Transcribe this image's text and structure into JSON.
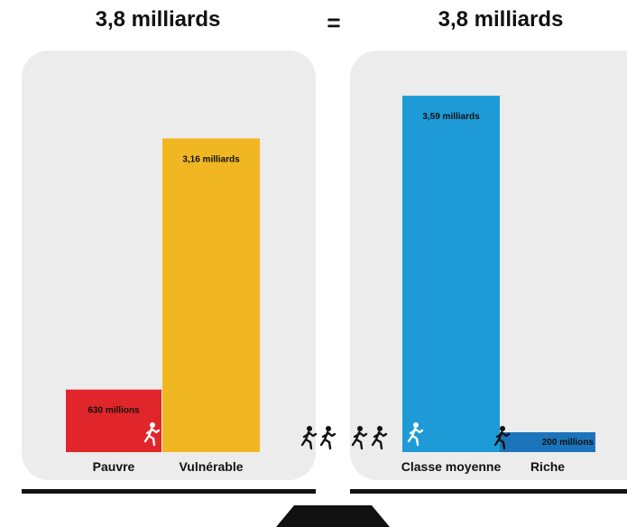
{
  "header": {
    "left_total": "3,8 milliards",
    "equals": "=",
    "right_total": "3,8 milliards"
  },
  "chart_data": [
    {
      "type": "bar",
      "categories": [
        "Pauvre",
        "Vulnérable"
      ],
      "values": [
        630,
        3160
      ],
      "value_unit": "millions",
      "data_labels": [
        "630 millions",
        "3,16 milliards"
      ],
      "colors": [
        "#e0262a",
        "#f0b722"
      ]
    },
    {
      "type": "bar",
      "categories": [
        "Classe moyenne",
        "Riche"
      ],
      "values": [
        3590,
        200
      ],
      "value_unit": "millions",
      "data_labels": [
        "3,59 milliards",
        "200 millions"
      ],
      "colors": [
        "#1e9bd7",
        "#1c74bb"
      ]
    }
  ],
  "icons": {
    "runner_walker": "walking-person-icon",
    "runner_group": "running-people-icon"
  }
}
